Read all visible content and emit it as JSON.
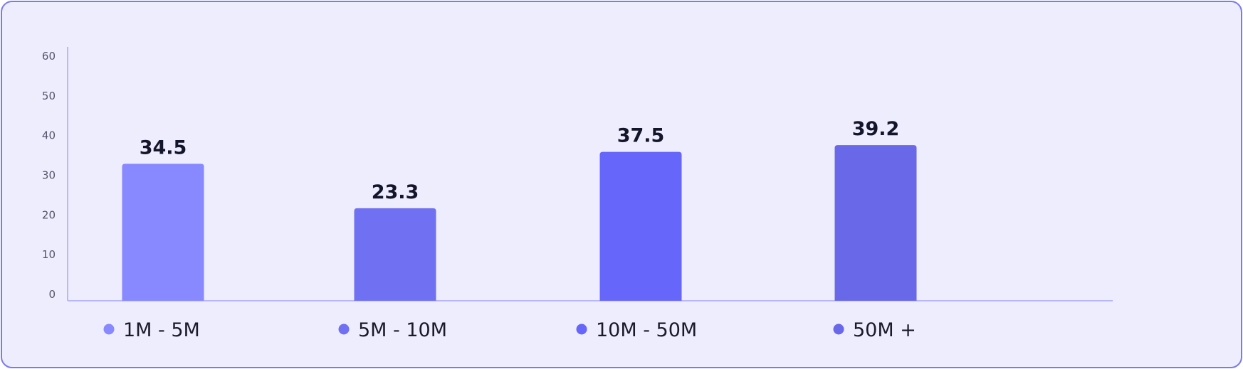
{
  "chart_data": {
    "type": "bar",
    "categories": [
      "1M - 5M",
      "5M - 10M",
      "10M - 50M",
      "50M +"
    ],
    "values": [
      34.5,
      23.3,
      37.5,
      39.2
    ],
    "value_labels": [
      "34.5",
      "23.3",
      "37.5",
      "39.2"
    ],
    "colors": [
      "#8888ff",
      "#7070f2",
      "#6666fa",
      "#6868e8"
    ],
    "yticks": [
      "0",
      "10",
      "20",
      "30",
      "40",
      "50",
      "60"
    ],
    "ylim": [
      0,
      60
    ],
    "grid": true,
    "legend": "bottom",
    "xlabel": "",
    "ylabel": ""
  }
}
